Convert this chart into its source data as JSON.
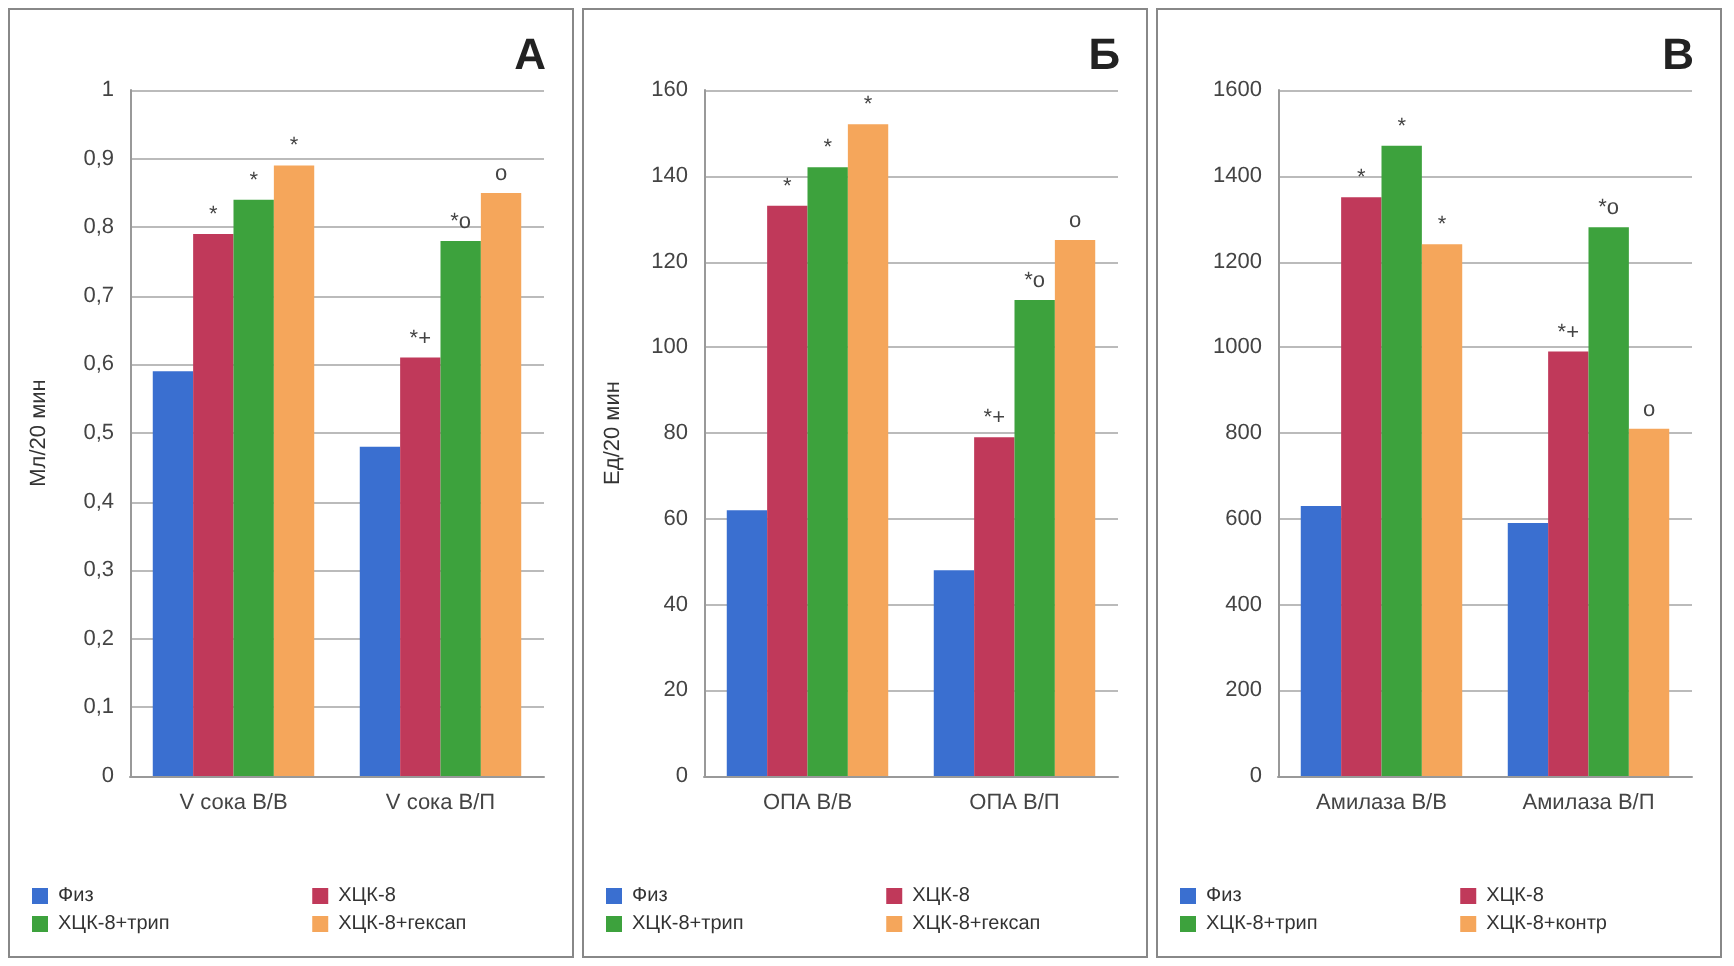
{
  "chart_data": [
    {
      "type": "bar",
      "title": "А",
      "ylabel": "Мл/20 мин",
      "categories": [
        "V сока В/В",
        "V сока В/П"
      ],
      "ylim": [
        0,
        1
      ],
      "yticks": [
        0,
        {
          "value": 0.1,
          "label": "0,1"
        },
        {
          "value": 0.2,
          "label": "0,2"
        },
        {
          "value": 0.3,
          "label": "0,3"
        },
        {
          "value": 0.4,
          "label": "0,4"
        },
        {
          "value": 0.5,
          "label": "0,5"
        },
        {
          "value": 0.6,
          "label": "0,6"
        },
        {
          "value": 0.7,
          "label": "0,7"
        },
        {
          "value": 0.8,
          "label": "0,8"
        },
        {
          "value": 0.9,
          "label": "0,9"
        },
        1
      ],
      "grid": "y",
      "legend": "bottom",
      "series": [
        {
          "name": "Физ",
          "color": "#3a6fd0",
          "values": [
            0.59,
            0.48
          ]
        },
        {
          "name": "ХЦК-8",
          "color": "#c0395a",
          "values": [
            0.79,
            0.61
          ],
          "value_labels": [
            "*",
            "*+"
          ]
        },
        {
          "name": "ХЦК-8+трип",
          "color": "#3da23d",
          "values": [
            0.84,
            0.78
          ],
          "value_labels": [
            "*",
            "*o"
          ]
        },
        {
          "name": "ХЦК-8+гексап",
          "color": "#f5a65b",
          "values": [
            0.89,
            0.85
          ],
          "value_labels": [
            "*",
            "o"
          ]
        }
      ]
    },
    {
      "type": "bar",
      "title": "Б",
      "ylabel": "Ед/20 мин",
      "categories": [
        "ОПА В/В",
        "ОПА В/П"
      ],
      "ylim": [
        0,
        160
      ],
      "yticks": [
        0,
        20,
        40,
        60,
        80,
        100,
        120,
        140,
        160
      ],
      "grid": "y",
      "legend": "bottom",
      "series": [
        {
          "name": "Физ",
          "color": "#3a6fd0",
          "values": [
            62,
            48
          ]
        },
        {
          "name": "ХЦК-8",
          "color": "#c0395a",
          "values": [
            133,
            79
          ],
          "value_labels": [
            "*",
            "*+"
          ]
        },
        {
          "name": "ХЦК-8+трип",
          "color": "#3da23d",
          "values": [
            142,
            111
          ],
          "value_labels": [
            "*",
            "*o"
          ]
        },
        {
          "name": "ХЦК-8+гексап",
          "color": "#f5a65b",
          "values": [
            152,
            125
          ],
          "value_labels": [
            "*",
            "o"
          ]
        }
      ]
    },
    {
      "type": "bar",
      "title": "В",
      "categories": [
        "Амилаза В/В",
        "Амилаза В/П"
      ],
      "ylim": [
        0,
        1600
      ],
      "yticks": [
        0,
        200,
        400,
        600,
        800,
        1000,
        1200,
        1400,
        1600
      ],
      "grid": "y",
      "legend": "bottom",
      "series": [
        {
          "name": "Физ",
          "color": "#3a6fd0",
          "values": [
            630,
            590
          ]
        },
        {
          "name": "ХЦК-8",
          "color": "#c0395a",
          "values": [
            1350,
            990
          ],
          "value_labels": [
            "*",
            "*+"
          ]
        },
        {
          "name": "ХЦК-8+трип",
          "color": "#3da23d",
          "values": [
            1470,
            1280
          ],
          "value_labels": [
            "*",
            "*o"
          ]
        },
        {
          "name": "ХЦК-8+контр",
          "color": "#f5a65b",
          "values": [
            1240,
            810
          ],
          "value_labels": [
            "*",
            "o"
          ]
        }
      ]
    }
  ]
}
